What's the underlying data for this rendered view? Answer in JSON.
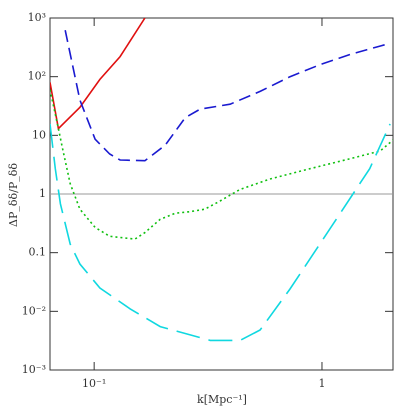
{
  "chart_data": {
    "type": "line",
    "xlabel": "k[Mpc⁻¹]",
    "ylabel": "ΔP_δδ/P_δδ",
    "xscale": "log",
    "yscale": "log",
    "xlim": [
      0.064,
      2.05
    ],
    "ylim": [
      0.001,
      1000
    ],
    "xticks": [
      {
        "value": 0.1,
        "label": "10⁻¹"
      },
      1
    ],
    "yticks": [
      {
        "value": 0.001,
        "label": "10⁻³"
      },
      {
        "value": 0.01,
        "label": "10⁻²"
      },
      0.1,
      1,
      10,
      {
        "value": 100,
        "label": "10²"
      },
      {
        "value": 1000,
        "label": "10³"
      }
    ],
    "hline": 1,
    "series": [
      {
        "color": "#e01010",
        "linestyle": "solid",
        "x": [
          0.064,
          0.0697,
          0.0866,
          0.106,
          0.13,
          0.167
        ],
        "values": [
          80,
          13,
          30,
          90,
          220,
          1000
        ]
      },
      {
        "color": "#1a1ad0",
        "linestyle": "dashed",
        "x": [
          0.0746,
          0.0866,
          0.101,
          0.117,
          0.13,
          0.167,
          0.205,
          0.251,
          0.292,
          0.395,
          0.535,
          0.724,
          0.98,
          1.33,
          1.99
        ],
        "values": [
          620,
          40,
          8.6,
          4.8,
          3.8,
          3.7,
          6.8,
          20,
          28,
          34,
          56,
          100,
          160,
          240,
          370
        ]
      },
      {
        "color": "#10c010",
        "linestyle": "dotted",
        "x": [
          0.064,
          0.0697,
          0.0726,
          0.0785,
          0.0866,
          0.101,
          0.117,
          0.151,
          0.167,
          0.195,
          0.227,
          0.263,
          0.306,
          0.357,
          0.437,
          0.592,
          0.886,
          1.33,
          1.8,
          2.05
        ],
        "values": [
          60,
          13,
          6,
          1.5,
          0.55,
          0.27,
          0.19,
          0.17,
          0.22,
          0.37,
          0.47,
          0.5,
          0.55,
          0.76,
          1.2,
          1.8,
          2.7,
          4,
          5.4,
          8.3
        ]
      },
      {
        "color": "#10d8e0",
        "linestyle": "longdash",
        "x": [
          0.064,
          0.0675,
          0.0711,
          0.0785,
          0.0866,
          0.106,
          0.144,
          0.195,
          0.323,
          0.437,
          0.535,
          0.724,
          1.08,
          1.62,
          1.99
        ],
        "values": [
          15.6,
          2.7,
          0.68,
          0.14,
          0.064,
          0.025,
          0.011,
          0.0055,
          0.0032,
          0.0032,
          0.0048,
          0.024,
          0.25,
          2.7,
          15.6
        ]
      }
    ]
  }
}
